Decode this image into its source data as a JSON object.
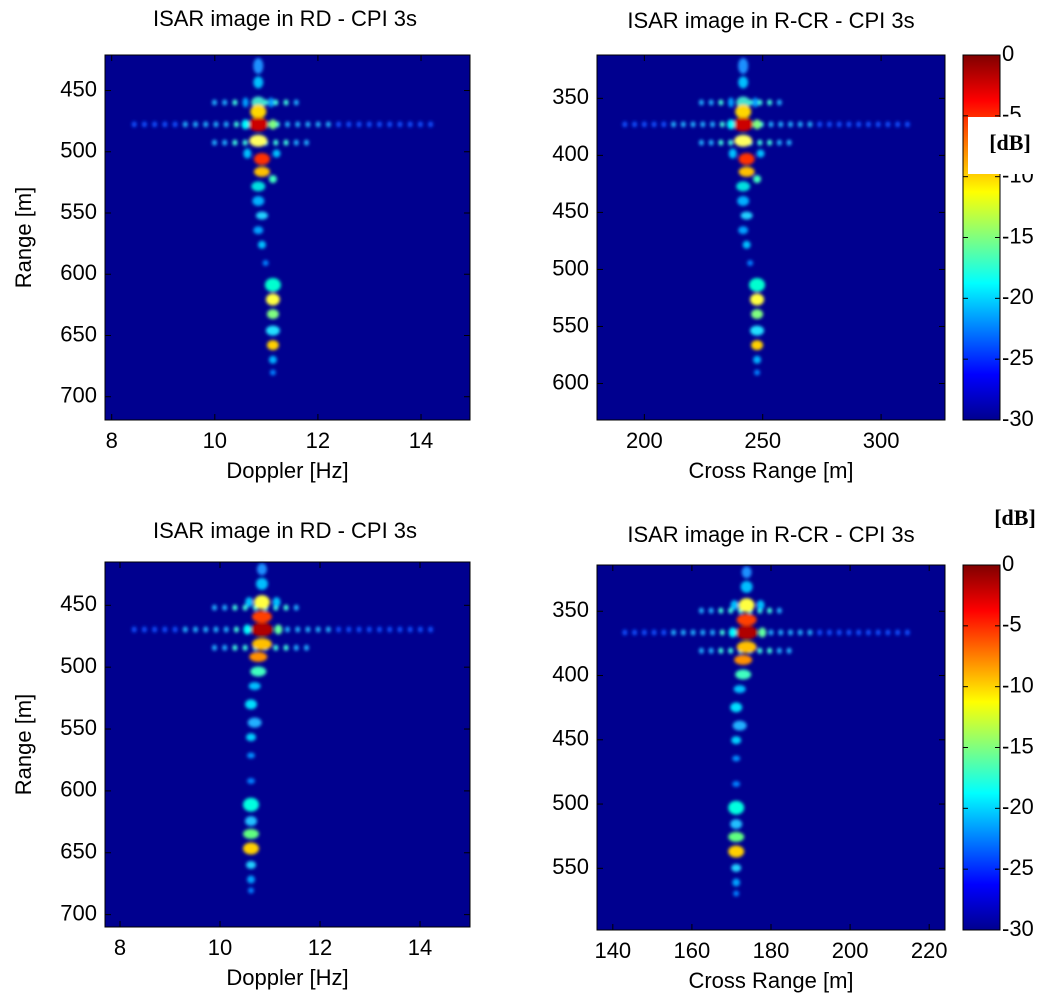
{
  "chart_data": [
    {
      "type": "heatmap",
      "title": "ISAR image in RD - CPI 3s",
      "xlabel": "Doppler [Hz]",
      "ylabel": "Range [m]",
      "xlim": [
        7.87,
        14.95
      ],
      "ylim": [
        421,
        719
      ],
      "y_reversed": true,
      "xticks": [
        8,
        10,
        12,
        14
      ],
      "yticks": [
        450,
        500,
        550,
        600,
        650,
        700
      ]
    },
    {
      "type": "heatmap",
      "title": "ISAR image in R-CR - CPI 3s",
      "xlabel": "Cross Range [m]",
      "xlim": [
        180,
        327
      ],
      "ylim": [
        312,
        632
      ],
      "y_reversed": true,
      "xticks": [
        200,
        250,
        300
      ],
      "yticks": [
        350,
        400,
        450,
        500,
        550,
        600
      ],
      "colorbar": {
        "label": "[dB]",
        "clim": [
          -30,
          0
        ],
        "ticks": [
          0,
          -5,
          -10,
          -15,
          -20,
          -25,
          -30
        ]
      }
    },
    {
      "type": "heatmap",
      "title": "ISAR image in RD - CPI 3s",
      "xlabel": "Doppler [Hz]",
      "ylabel": "Range [m]",
      "xlim": [
        7.7,
        15
      ],
      "ylim": [
        415,
        710
      ],
      "y_reversed": true,
      "xticks": [
        8,
        10,
        12,
        14
      ],
      "yticks": [
        450,
        500,
        550,
        600,
        650,
        700
      ]
    },
    {
      "type": "heatmap",
      "title": "ISAR image in R-CR - CPI 3s",
      "xlabel": "Cross Range [m]",
      "xlim": [
        136,
        224
      ],
      "ylim": [
        314,
        598
      ],
      "y_reversed": true,
      "xticks": [
        140,
        160,
        180,
        200,
        220
      ],
      "yticks": [
        350,
        400,
        450,
        500,
        550
      ],
      "colorbar": {
        "label": "[dB]",
        "clim": [
          -30,
          0
        ],
        "ticks": [
          0,
          -5,
          -10,
          -15,
          -20,
          -25,
          -30
        ]
      }
    }
  ]
}
